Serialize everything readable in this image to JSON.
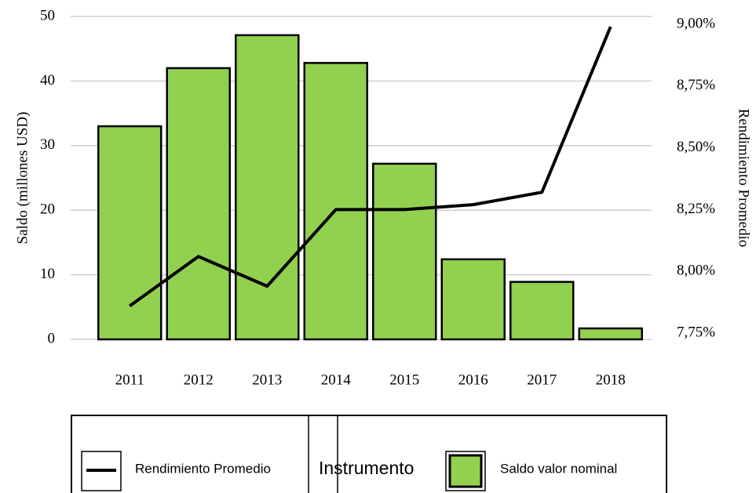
{
  "chart_data": {
    "type": "bar",
    "categories": [
      "2011",
      "2012",
      "2013",
      "2014",
      "2015",
      "2016",
      "2017",
      "2018"
    ],
    "series": [
      {
        "name": "Saldo valor nominal",
        "color": "#92d050",
        "values": [
          33.0,
          42.0,
          47.1,
          42.8,
          27.2,
          12.4,
          8.9,
          1.7
        ]
      },
      {
        "name": "Rendimiento Promedio",
        "color": "#000000",
        "type": "line",
        "axis": "y2",
        "values": [
          7.86,
          8.06,
          7.94,
          8.25,
          8.25,
          8.27,
          8.32,
          8.99
        ]
      }
    ],
    "ylabel": "Saldo (millones USD)",
    "y2label": "Rendimiento Promedio",
    "ylim": [
      0,
      50
    ],
    "yticks": [
      0,
      10,
      20,
      30,
      40,
      50
    ],
    "y2lim": [
      7.75,
      9.0
    ],
    "y2ticks": [
      {
        "value": 7.75,
        "label": "7,75%"
      },
      {
        "value": 8.0,
        "label": "8,00%"
      },
      {
        "value": 8.25,
        "label": "8,25%"
      },
      {
        "value": 8.5,
        "label": "8,50%"
      },
      {
        "value": 8.75,
        "label": "8,75%"
      },
      {
        "value": 9.0,
        "label": "9,00%"
      }
    ],
    "grid": true,
    "legend_title": "Instrumento",
    "legend": "bottom"
  }
}
